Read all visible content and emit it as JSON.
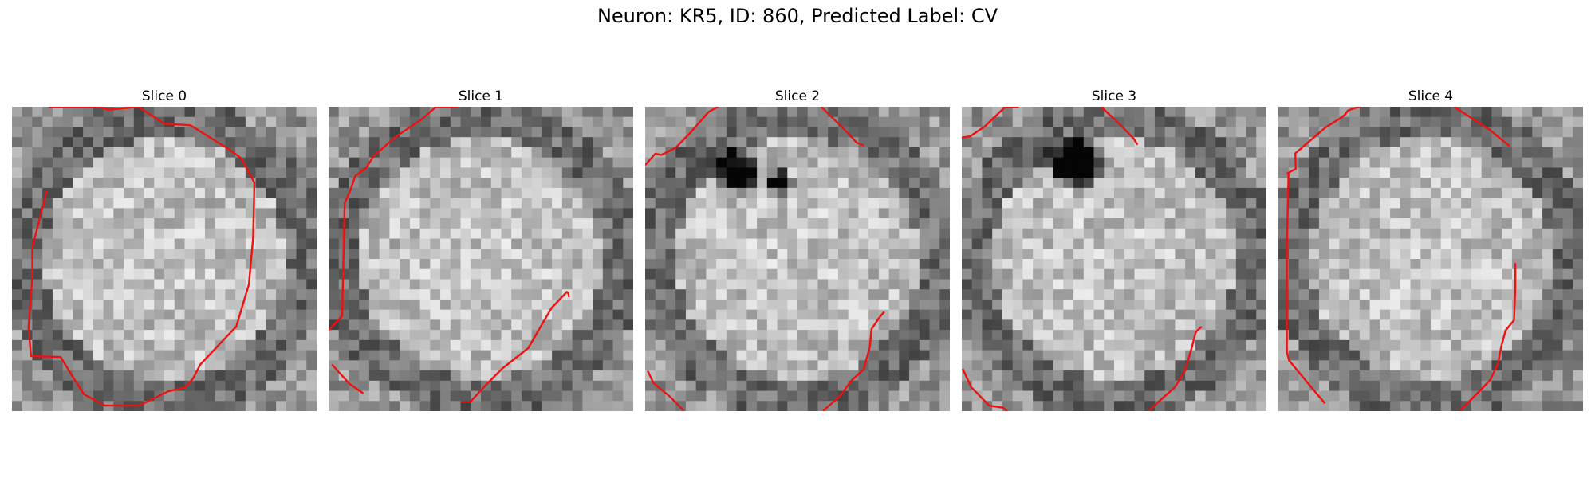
{
  "figure": {
    "title": "Neuron: KR5, ID: 860, Predicted Label: CV"
  },
  "style": {
    "contour_color": "#ee1111"
  },
  "slices": [
    {
      "title": "Slice 0",
      "darkspot": null,
      "contours": [
        [
          [
            8.8,
            0
          ],
          [
            20.7,
            0
          ],
          [
            22.8,
            0.7
          ],
          [
            29.9,
            0
          ],
          [
            36,
            4
          ],
          [
            42.2,
            4.4
          ],
          [
            51.2,
            10
          ],
          [
            54.2,
            12.2
          ],
          [
            57.3,
            18
          ],
          [
            57,
            31
          ],
          [
            56,
            42
          ],
          [
            53,
            52
          ],
          [
            49,
            56.2
          ],
          [
            44.5,
            61
          ],
          [
            42.8,
            64.3
          ],
          [
            41,
            66.4
          ],
          [
            37,
            67.3
          ],
          [
            30,
            70.7
          ],
          [
            22,
            70.7
          ],
          [
            17,
            68
          ],
          [
            14,
            63.3
          ],
          [
            11.5,
            59.2
          ],
          [
            4.5,
            59
          ],
          [
            3.9,
            52.3
          ],
          [
            4.8,
            40.4
          ],
          [
            4.8,
            33.3
          ],
          [
            8.2,
            20
          ]
        ]
      ]
    },
    {
      "title": "Slice 1",
      "darkspot": null,
      "contours": [
        [
          [
            0,
            52.9
          ],
          [
            3.2,
            49.5
          ],
          [
            3.8,
            22.7
          ],
          [
            5,
            20.2
          ],
          [
            6.3,
            16.4
          ],
          [
            8.9,
            14.5
          ],
          [
            10.6,
            11.7
          ],
          [
            16,
            7
          ],
          [
            22,
            3
          ],
          [
            25.4,
            0
          ],
          [
            30.6,
            0
          ]
        ],
        [
          [
            0.8,
            61
          ],
          [
            5,
            65.6
          ],
          [
            8.2,
            67.8
          ]
        ],
        [
          [
            31.2,
            69.8
          ],
          [
            33.5,
            69.8
          ],
          [
            37.7,
            65.3
          ],
          [
            41.2,
            61.8
          ],
          [
            47.2,
            57.1
          ],
          [
            52.7,
            47.6
          ],
          [
            56.3,
            43.8
          ],
          [
            56.7,
            44.2
          ],
          [
            56.8,
            45
          ]
        ]
      ]
    },
    {
      "title": "Slice 2",
      "darkspot": [
        [
          21.5,
          15.3,
          5.4,
          4.6,
          0.9
        ],
        [
          31.5,
          17.8,
          3.3,
          2.8,
          0.75
        ]
      ],
      "contours": [
        [
          [
            0,
            13.8
          ],
          [
            2.4,
            11.1
          ],
          [
            3.8,
            11.4
          ],
          [
            7.2,
            9.7
          ],
          [
            10.7,
            6.1
          ],
          [
            15,
            1.2
          ],
          [
            17.2,
            0
          ]
        ],
        [
          [
            41.6,
            0
          ],
          [
            47,
            5.3
          ],
          [
            50,
            8.5
          ],
          [
            51.7,
            9.2
          ]
        ],
        [
          [
            0.6,
            62.5
          ],
          [
            2,
            65.4
          ],
          [
            6,
            68.7
          ],
          [
            9.2,
            72
          ]
        ],
        [
          [
            42,
            72
          ],
          [
            46,
            68.5
          ],
          [
            48.8,
            64.7
          ],
          [
            51.6,
            62.2
          ],
          [
            53.1,
            56.8
          ],
          [
            53.5,
            52.6
          ],
          [
            55.4,
            49.8
          ],
          [
            56.5,
            48.5
          ]
        ]
      ]
    },
    {
      "title": "Slice 3",
      "darkspot": [
        [
          27.7,
          13.5,
          5.6,
          5.0,
          0.95
        ],
        [
          23.6,
          13.2,
          4.0,
          3.0,
          0.6
        ]
      ],
      "contours": [
        [
          [
            0,
            7.3
          ],
          [
            2,
            7
          ],
          [
            5.5,
            4.6
          ],
          [
            10.3,
            0
          ],
          [
            13.5,
            0
          ]
        ],
        [
          [
            32.9,
            0
          ],
          [
            37,
            3.8
          ],
          [
            40.6,
            7.5
          ],
          [
            41.5,
            9
          ]
        ],
        [
          [
            0.2,
            62
          ],
          [
            2.2,
            66.3
          ],
          [
            6.5,
            70.7
          ],
          [
            9.8,
            71.2
          ],
          [
            11.1,
            72.4
          ]
        ],
        [
          [
            43.8,
            72.4
          ],
          [
            46.6,
            69.7
          ],
          [
            50.4,
            66.3
          ],
          [
            52.8,
            62.4
          ],
          [
            54.4,
            56.8
          ],
          [
            55.3,
            53.3
          ],
          [
            56.7,
            52
          ]
        ]
      ]
    },
    {
      "title": "Slice 4",
      "darkspot": null,
      "contours": [
        [
          [
            2,
            15.8
          ],
          [
            4.1,
            14.7
          ],
          [
            4,
            11
          ],
          [
            6.6,
            8.8
          ],
          [
            11,
            5
          ],
          [
            14.8,
            2.6
          ],
          [
            15.8,
            1.8
          ],
          [
            16.4,
            0.9
          ],
          [
            19.6,
            -0.2
          ]
        ],
        [
          [
            41.5,
            0
          ],
          [
            50,
            5.5
          ],
          [
            54.6,
            9.3
          ]
        ],
        [
          [
            2.4,
            15.8
          ],
          [
            2,
            33
          ],
          [
            2,
            51.4
          ],
          [
            2,
            58
          ],
          [
            2.5,
            60
          ],
          [
            6.8,
            65.2
          ],
          [
            11,
            70.2
          ]
        ],
        [
          [
            43,
            71.8
          ],
          [
            47.3,
            67.5
          ],
          [
            50.1,
            64.6
          ],
          [
            51.9,
            60.7
          ],
          [
            52.7,
            56.6
          ],
          [
            53.7,
            52.9
          ],
          [
            55.7,
            50.5
          ],
          [
            56,
            42.5
          ],
          [
            56,
            37
          ]
        ]
      ]
    }
  ]
}
